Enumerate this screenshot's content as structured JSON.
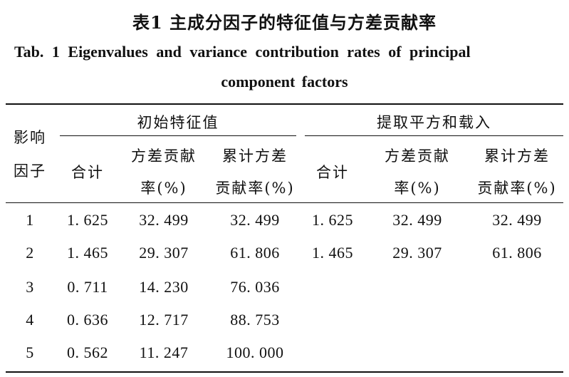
{
  "caption": {
    "cn": "表1  主成分因子的特征值与方差贡献率",
    "en_line1": "Tab. 1   Eigenvalues and variance contribution rates of principal",
    "en_line2": "component factors"
  },
  "header": {
    "factor_line1": "影响",
    "factor_line2": "因子",
    "group_initial": "初始特征值",
    "group_extract": "提取平方和载入",
    "total": "合计",
    "var_line1": "方差贡献",
    "var_line2": "率(%)",
    "cum_line1": "累计方差",
    "cum_line2": "贡献率(%)"
  },
  "rows": [
    {
      "factor": "1",
      "i_total": "1. 625",
      "i_var": "32. 499",
      "i_cum": "32. 499",
      "e_total": "1. 625",
      "e_var": "32. 499",
      "e_cum": "32. 499"
    },
    {
      "factor": "2",
      "i_total": "1. 465",
      "i_var": "29. 307",
      "i_cum": "61. 806",
      "e_total": "1. 465",
      "e_var": "29. 307",
      "e_cum": "61. 806"
    },
    {
      "factor": "3",
      "i_total": "0. 711",
      "i_var": "14. 230",
      "i_cum": "76. 036",
      "e_total": "",
      "e_var": "",
      "e_cum": ""
    },
    {
      "factor": "4",
      "i_total": "0. 636",
      "i_var": "12. 717",
      "i_cum": "88. 753",
      "e_total": "",
      "e_var": "",
      "e_cum": ""
    },
    {
      "factor": "5",
      "i_total": "0. 562",
      "i_var": "11. 247",
      "i_cum": "100. 000",
      "e_total": "",
      "e_var": "",
      "e_cum": ""
    }
  ]
}
